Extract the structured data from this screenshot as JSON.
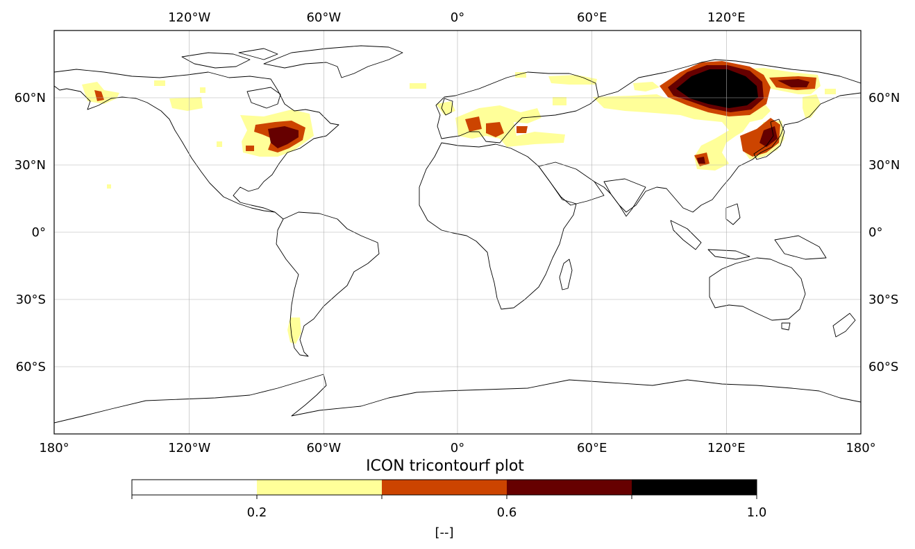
{
  "title": "ICON tricontourf plot",
  "axes": {
    "lon_ticks": [
      "180°",
      "120°W",
      "60°W",
      "0°",
      "60°E",
      "120°E",
      "180°"
    ],
    "lon_ticks_top": [
      "120°W",
      "60°W",
      "0°",
      "60°E",
      "120°E"
    ],
    "lat_ticks": [
      "60°N",
      "30°N",
      "0°",
      "30°S",
      "60°S"
    ],
    "lon_range": [
      -180,
      180
    ],
    "lat_range": [
      -90,
      90
    ],
    "gridlines": true
  },
  "colorbar": {
    "label": "[--]",
    "tick_labels": [
      "0.2",
      "0.6",
      "1.0"
    ],
    "levels": [
      0.0,
      0.2,
      0.4,
      0.6,
      0.8,
      1.0
    ],
    "colors": [
      "#ffffff",
      "#ffff99",
      "#cc4400",
      "#660000",
      "#000000"
    ]
  },
  "colors": {
    "coastline": "#000000",
    "grid": "#b0b0b0",
    "low": "#ffff99",
    "mid": "#cc4400",
    "high": "#660000",
    "max": "#000000"
  }
}
